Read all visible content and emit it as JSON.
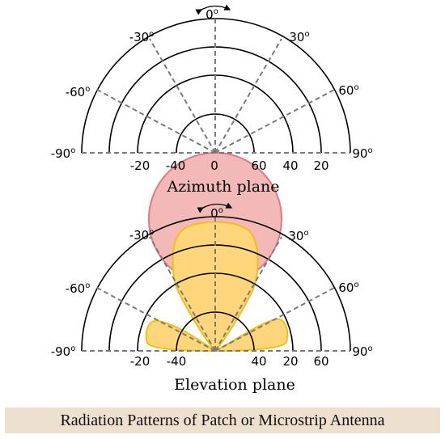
{
  "colors": {
    "azimuth_fill": "#f3b9b9",
    "azimuth_stroke": "#e07a7a",
    "elevation_fill": "#fdd67b",
    "elevation_stroke": "#f3bf16",
    "caption_band": "#eee0cf",
    "ring": "#000000",
    "dashed": "#7a7a7a"
  },
  "diagrams": {
    "azimuth": {
      "title": "Azimuth plane",
      "top_label": "0",
      "degree_symbol": "o",
      "angle_labels": {
        "m30": "-30",
        "p30": "30",
        "m60": "-60",
        "p60": "60",
        "m90": "-90",
        "p90": "90"
      },
      "scale_left": [
        "-20",
        "-40",
        "0"
      ],
      "scale_right": [
        "60",
        "40",
        "20"
      ],
      "arrow_icon": "double-arrow-arc-icon"
    },
    "elevation": {
      "title": "Elevation plane",
      "top_label": "0",
      "degree_symbol": "o",
      "angle_labels": {
        "m30": "-30",
        "p30": "30",
        "m60": "-60",
        "p60": "60",
        "m90": "-90",
        "p90": "90"
      },
      "scale_left": [
        "-20",
        "-40"
      ],
      "scale_right": [
        "40",
        "20",
        "60"
      ],
      "arrow_icon": "double-arrow-arc-icon"
    }
  },
  "caption": "Radiation Patterns of Patch or Microstrip Antenna"
}
